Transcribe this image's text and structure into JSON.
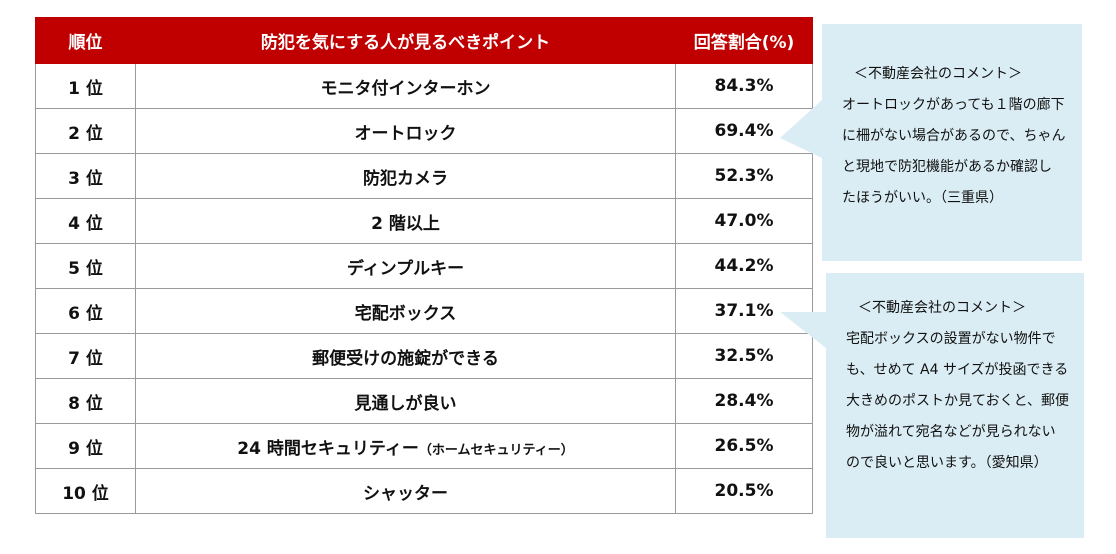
{
  "table": {
    "headers": [
      "順位",
      "防犯を気にする人が見るべきポイント",
      "回答割合(%)"
    ],
    "rows": [
      {
        "rank": "1 位",
        "point": "モニタ付インターホン",
        "note": "",
        "percent": "84.3%"
      },
      {
        "rank": "2 位",
        "point": "オートロック",
        "note": "",
        "percent": "69.4%"
      },
      {
        "rank": "3 位",
        "point": "防犯カメラ",
        "note": "",
        "percent": "52.3%"
      },
      {
        "rank": "4 位",
        "point": "2 階以上",
        "note": "",
        "percent": "47.0%"
      },
      {
        "rank": "5 位",
        "point": "ディンプルキー",
        "note": "",
        "percent": "44.2%"
      },
      {
        "rank": "6 位",
        "point": "宅配ボックス",
        "note": "",
        "percent": "37.1%"
      },
      {
        "rank": "7 位",
        "point": "郵便受けの施錠ができる",
        "note": "",
        "percent": "32.5%"
      },
      {
        "rank": "8 位",
        "point": "見通しが良い",
        "note": "",
        "percent": "28.4%"
      },
      {
        "rank": "9 位",
        "point": "24 時間セキュリティー",
        "note": "（ホームセキュリティー）",
        "percent": "26.5%"
      },
      {
        "rank": "10 位",
        "point": "シャッター",
        "note": "",
        "percent": "20.5%"
      }
    ]
  },
  "comments": [
    {
      "heading": "＜不動産会社のコメント＞",
      "lines": [
        "オートロックがあっても１階の廊下",
        "に柵がない場合があるので、ちゃん",
        "と現地で防犯機能があるか確認し",
        "たほうがいい。（三重県）"
      ]
    },
    {
      "heading": "＜不動産会社のコメント＞",
      "lines": [
        "宅配ボックスの設置がない物件で",
        "も、せめて A4 サイズが投函できる",
        "大きめのポストか見ておくと、郵便",
        "物が溢れて宛名などが見られない",
        "ので良いと思います。（愛知県）"
      ]
    }
  ],
  "colors": {
    "header_bg": "#c00000",
    "bubble_bg": "#daedf4"
  }
}
